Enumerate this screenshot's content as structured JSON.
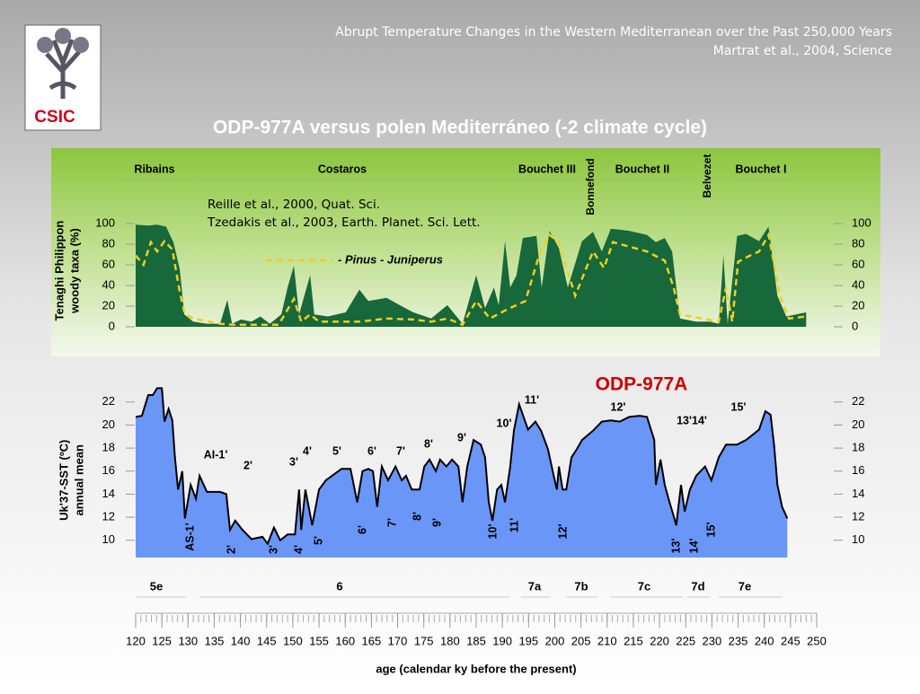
{
  "header": {
    "line1": "Abrupt Temperature Changes in the Western Mediterranean over the Past 250,000 Years",
    "line2": "Martrat et al., 2004, Science"
  },
  "logo": {
    "text": "CSIC"
  },
  "title": "ODP-977A versus polen Mediterráneo (-2 climate cycle)",
  "chart_data": [
    {
      "type": "area",
      "ylabel": [
        "Tenaghi Philippon",
        "woody taxa (%)"
      ],
      "xlim": [
        120,
        250
      ],
      "ylim": [
        0,
        100
      ],
      "yticks": [
        0,
        20,
        40,
        60,
        80,
        100
      ],
      "annotations": [
        "Reille et al., 2000, Quat. Sci.",
        "Tzedakis et al., 2003, Earth. Planet. Sci. Lett."
      ],
      "stages": [
        "Ribains",
        "Costaros",
        "Bouchet III",
        "Bonnefond",
        "Bouchet II",
        "Belvezet",
        "Bouchet I"
      ],
      "series": [
        {
          "color": "#17683a",
          "x": [
            120,
            122.4,
            124.1,
            125.8,
            127.2,
            128.4,
            129.3,
            131,
            133.6,
            136.1,
            137.5,
            138.4,
            140.1,
            142.1,
            143.8,
            145.6,
            147.8,
            149,
            150.2,
            151.2,
            153.3,
            154.1,
            156.7,
            160.1,
            162.7,
            164.4,
            167.9,
            170.4,
            173,
            176.4,
            179.5,
            182.4,
            185,
            186.7,
            188.4,
            189.3,
            190.5,
            191.5,
            192.7,
            193.9,
            196.5,
            197.5,
            199,
            200.8,
            202.5,
            205.2,
            207.3,
            209,
            210.7,
            214.2,
            217.6,
            219.3,
            221,
            222.4,
            223.9,
            227,
            229.6,
            231.3,
            232.2,
            233,
            234.8,
            236.5,
            239,
            240.8,
            242.5,
            244.2,
            248
          ],
          "values": [
            99,
            98,
            99,
            97,
            82,
            56,
            12,
            5,
            3,
            3,
            26,
            3,
            7,
            5,
            10,
            3,
            12,
            38,
            59,
            12,
            50,
            12,
            10,
            14,
            36,
            25,
            28,
            21,
            14,
            8,
            21,
            3,
            50,
            18,
            38,
            21,
            83,
            38,
            50,
            86,
            88,
            38,
            93,
            76,
            38,
            83,
            92,
            73,
            95,
            93,
            89,
            82,
            86,
            73,
            8,
            5,
            5,
            3,
            69,
            3,
            88,
            90,
            83,
            97,
            30,
            10,
            14
          ]
        },
        {
          "name": "- Pinus - Juniperus",
          "color": "#f2cf1d",
          "dashed": true,
          "x": [
            120,
            121.5,
            122.9,
            124.1,
            125.5,
            127,
            128.4,
            129.4,
            131,
            136.1,
            138.7,
            147.3,
            150.2,
            151.6,
            153.3,
            155,
            162.7,
            167.9,
            173,
            176.4,
            179.5,
            182.4,
            185,
            187.6,
            191,
            194.4,
            197,
            199,
            200.8,
            203.9,
            207.3,
            209.4,
            211.1,
            217.6,
            221,
            222.7,
            223.9,
            231.3,
            232.7,
            233.9,
            235,
            237.3,
            239,
            240.8,
            243,
            244.7,
            248
          ],
          "values": [
            69,
            60,
            82,
            73,
            83,
            75,
            34,
            12,
            8,
            3,
            2,
            2,
            27,
            5,
            12,
            5,
            5,
            8,
            7,
            5,
            8,
            2,
            25,
            8,
            17,
            25,
            69,
            89,
            82,
            30,
            73,
            57,
            82,
            73,
            64,
            38,
            12,
            5,
            38,
            5,
            63,
            69,
            73,
            89,
            30,
            8,
            10
          ]
        }
      ]
    },
    {
      "type": "area",
      "ylabel": [
        "Uk'37-SST (ºC)",
        "annual mean"
      ],
      "xlabel": "age (calendar ky before the present)",
      "xlim": [
        120,
        250
      ],
      "xticks": [
        120,
        125,
        130,
        135,
        140,
        145,
        150,
        155,
        160,
        165,
        170,
        175,
        180,
        185,
        190,
        195,
        200,
        205,
        210,
        215,
        220,
        225,
        230,
        235,
        240,
        245,
        250
      ],
      "ylim": [
        8.5,
        23.5
      ],
      "yticks": [
        10,
        12,
        14,
        16,
        18,
        20,
        22
      ],
      "stages": [
        "5e",
        "6",
        "7a",
        "7b",
        "7c",
        "7d",
        "7e"
      ],
      "events_warm": [
        "AI-1'",
        "2'",
        "3'",
        "4'",
        "5'",
        "6'",
        "7'",
        "8'",
        "9'",
        "10'",
        "11'",
        "12'",
        "13'14'",
        "15'"
      ],
      "events_cold": [
        "AS-1'",
        "2'",
        "3'",
        "4'",
        "5'",
        "6'",
        "7'",
        "8'",
        "9'",
        "10'",
        "11'",
        "12'",
        "13'",
        "14'",
        "15'"
      ],
      "series": [
        {
          "name": "ODP-977A",
          "color": "#6a96f8",
          "label_color": "#cc0000",
          "x": [
            120,
            121.2,
            122.4,
            123.3,
            124.1,
            125,
            125.5,
            126.3,
            127,
            127.5,
            128.1,
            128.9,
            129.4,
            130.5,
            131.5,
            132.2,
            133.6,
            136.1,
            137.3,
            138,
            139,
            140.4,
            142.1,
            144.2,
            145.2,
            146.4,
            147.6,
            149,
            150.4,
            151.2,
            151.6,
            152.4,
            153.7,
            155,
            156.3,
            159.3,
            161,
            162.3,
            163.3,
            164.4,
            165.3,
            166.1,
            167,
            168.2,
            169.6,
            170.8,
            171.6,
            172.7,
            174.2,
            175.1,
            176.1,
            177.3,
            178.1,
            179.3,
            180.4,
            181.6,
            182.4,
            183.3,
            184.5,
            185.9,
            186.7,
            187.4,
            188.1,
            189,
            189.8,
            190.5,
            191.5,
            192.2,
            193.2,
            193.9,
            194.9,
            196.3,
            197.4,
            198.7,
            199.8,
            200.4,
            200.8,
            201.5,
            202.2,
            203.2,
            204.2,
            205.2,
            207.3,
            209,
            210.7,
            212.4,
            214.2,
            216.2,
            217.6,
            219,
            219.3,
            220.2,
            221,
            221.9,
            222.7,
            223.2,
            224.1,
            224.8,
            225.8,
            227,
            228.7,
            229.9,
            231.3,
            232.7,
            234.8,
            236.5,
            239,
            240.2,
            241.2,
            241.9,
            242.5,
            243.4,
            244.4
          ],
          "values": [
            20.7,
            20.8,
            22.6,
            22.6,
            23.2,
            23.2,
            20.3,
            21.4,
            20.4,
            17.2,
            14.4,
            16,
            11.9,
            14.8,
            13.6,
            15.6,
            14.2,
            14.2,
            14,
            10.9,
            11.7,
            10.9,
            10.1,
            10.3,
            9.7,
            11.1,
            10,
            10.5,
            10.5,
            14.4,
            10.9,
            14.4,
            11.3,
            14.4,
            15.2,
            16.2,
            16.2,
            13.3,
            16,
            16.2,
            16,
            12.9,
            16.4,
            15.2,
            16.4,
            15.2,
            15.6,
            14.4,
            14.4,
            16.4,
            17,
            16,
            17,
            16.4,
            17,
            16.4,
            13.3,
            16.4,
            18.7,
            18.3,
            17.2,
            13.3,
            11.7,
            14.4,
            14.8,
            13.3,
            16.4,
            19.5,
            21.8,
            20.9,
            19.6,
            20.3,
            19.5,
            17.9,
            15.6,
            14.4,
            16.4,
            14.4,
            14.4,
            17.2,
            17.9,
            18.7,
            19.5,
            20.3,
            20.4,
            20.3,
            20.7,
            20.8,
            20.7,
            18.7,
            14.8,
            17,
            14.8,
            13.3,
            12.1,
            11.3,
            14.8,
            12.5,
            14.4,
            15.6,
            16.4,
            15.2,
            17.2,
            18.3,
            18.3,
            18.7,
            19.6,
            21.2,
            20.9,
            18.1,
            14.8,
            12.9,
            11.9
          ]
        }
      ]
    }
  ]
}
